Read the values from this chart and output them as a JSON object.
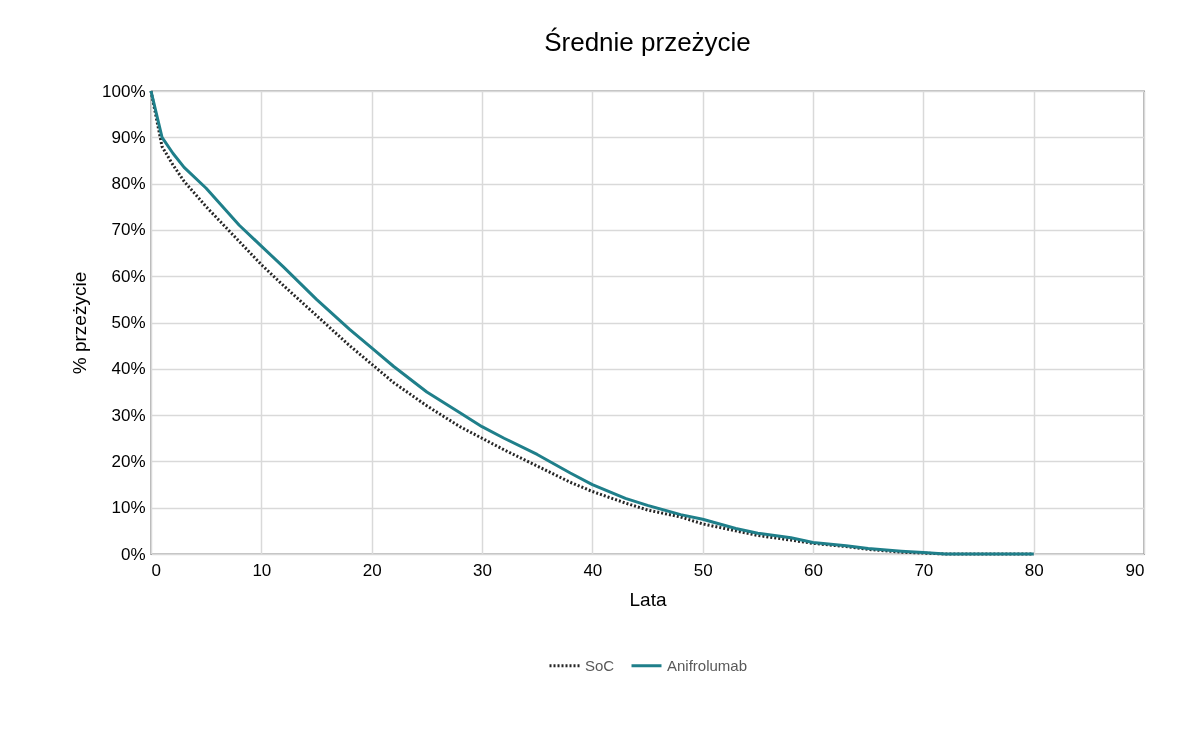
{
  "chart_data": {
    "type": "line",
    "title": "Średnie przeżycie",
    "xlabel": "Lata",
    "ylabel": "% przeżycie",
    "xlim": [
      0,
      90
    ],
    "xticks": [
      0,
      10,
      20,
      30,
      40,
      50,
      60,
      70,
      80,
      90
    ],
    "ylim": [
      0,
      100
    ],
    "yticks": [
      {
        "value": 0,
        "label": "0%"
      },
      {
        "value": 10,
        "label": "10%"
      },
      {
        "value": 20,
        "label": "20%"
      },
      {
        "value": 30,
        "label": "30%"
      },
      {
        "value": 40,
        "label": "40%"
      },
      {
        "value": 50,
        "label": "50%"
      },
      {
        "value": 60,
        "label": "60%"
      },
      {
        "value": 70,
        "label": "70%"
      },
      {
        "value": 80,
        "label": "80%"
      },
      {
        "value": 90,
        "label": "90%"
      },
      {
        "value": 100,
        "label": "100%"
      }
    ],
    "grid": true,
    "legend": "bottom",
    "marker": "none",
    "x": [
      0,
      1,
      2,
      3,
      5,
      8,
      10,
      12,
      15,
      18,
      20,
      22,
      25,
      28,
      30,
      32,
      35,
      38,
      40,
      43,
      45,
      48,
      50,
      53,
      55,
      58,
      60,
      63,
      65,
      68,
      70,
      72,
      80
    ],
    "series": [
      {
        "name": "SoC",
        "color": "#262626",
        "line_style": "dotted",
        "values": [
          100,
          88,
          84,
          80.5,
          75,
          67.5,
          62.5,
          58,
          51.5,
          45,
          41,
          37,
          32,
          27.5,
          25,
          22.5,
          19,
          15.5,
          13.5,
          11,
          9.5,
          8,
          6.5,
          5,
          4,
          3,
          2.3,
          1.6,
          1,
          0.4,
          0.2,
          0,
          0
        ]
      },
      {
        "name": "Anifrolumab",
        "color": "#1f7f8a",
        "line_style": "solid",
        "values": [
          100,
          90,
          86.5,
          83.5,
          79,
          71,
          66.5,
          62,
          55,
          48.5,
          44.5,
          40.5,
          35,
          30.5,
          27.5,
          25,
          21.5,
          17.5,
          15,
          12,
          10.5,
          8.5,
          7.5,
          5.5,
          4.5,
          3.5,
          2.5,
          1.8,
          1.2,
          0.6,
          0.3,
          0,
          0
        ]
      }
    ]
  }
}
